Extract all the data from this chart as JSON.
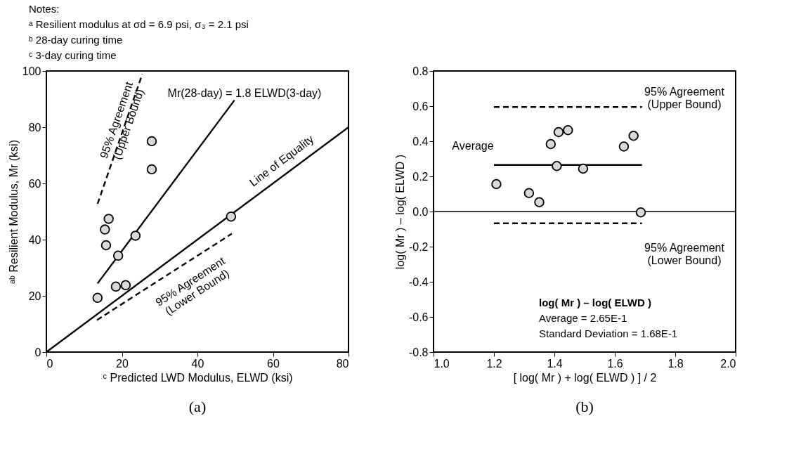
{
  "chart_data": [
    {
      "type": "scatter",
      "xlabel": "ᶜ Predicted LWD Modulus, ELWD (ksi)",
      "ylabel": "ᵃᵇ Resilient Modulus, Mr (ksi)",
      "xlim": [
        0,
        80
      ],
      "ylim": [
        0,
        100
      ],
      "xticks": [
        0,
        20,
        40,
        60,
        80
      ],
      "yticks": [
        0,
        20,
        40,
        60,
        80,
        100
      ],
      "series": [
        {
          "marker": "circle",
          "color": "#d9d9d9",
          "x": [
            13.55,
            18.4,
            21.0,
            19.0,
            15.8,
            15.5,
            16.5,
            23.6,
            27.9,
            27.9,
            48.9
          ],
          "values": [
            19.3,
            23.3,
            23.8,
            34.3,
            38.0,
            43.6,
            47.4,
            41.4,
            65.0,
            75.0,
            48.2
          ]
        },
        {
          "type": "line",
          "color": "#000000",
          "line_style": "solid",
          "x": [
            0,
            80
          ],
          "values": [
            0,
            80
          ]
        },
        {
          "type": "line",
          "color": "#000000",
          "line_style": "solid",
          "x": [
            13.55,
            49.8
          ],
          "values": [
            24.4,
            89.6
          ]
        },
        {
          "type": "line",
          "color": "#000000",
          "line_style": "dashed",
          "x": [
            13.55,
            25.4
          ],
          "values": [
            52.7,
            98.9
          ]
        },
        {
          "type": "line",
          "color": "#000000",
          "line_style": "dashed",
          "x": [
            13.4,
            49.1
          ],
          "values": [
            11.4,
            42.1
          ]
        }
      ],
      "annotations": [
        "Notes:",
        "ᵃ Resilient modulus at σd = 6.9 psi, σ₃ = 2.1 psi",
        "ᵇ 28-day curing time",
        "ᶜ 3-day curing time",
        "(a)",
        "Mr(28-day) = 1.8 ELWD(3-day)",
        "Line of Equality",
        "95% Agreement\n(Upper Bound)",
        "95% Agreement\n(Lower Bound)"
      ]
    },
    {
      "type": "scatter",
      "xlabel": "[ log( Mr ) + log( ELWD ) ] / 2",
      "ylabel": "log( Mr ) – log( ELWD )",
      "xlim": [
        1.0,
        2.0
      ],
      "ylim": [
        -0.8,
        0.8
      ],
      "xticks": [
        {
          "value": 1.0,
          "label": "1.0"
        },
        1.2,
        1.4,
        1.6,
        1.8,
        {
          "value": 2.0,
          "label": "2.0"
        }
      ],
      "yticks": [
        {
          "value": -0.8,
          "label": "-0.8"
        },
        {
          "value": -0.6,
          "label": "-0.6"
        },
        {
          "value": -0.4,
          "label": "-0.4"
        },
        {
          "value": -0.2,
          "label": "-0.2"
        },
        {
          "value": 0,
          "label": "0.0"
        },
        0.2,
        0.4,
        0.6,
        0.8
      ],
      "series": [
        {
          "marker": "circle",
          "color": "#d9d9d9",
          "x": [
            1.208,
            1.316,
            1.35,
            1.388,
            1.414,
            1.445,
            1.408,
            1.495,
            1.63,
            1.662,
            1.686
          ],
          "values": [
            0.156,
            0.105,
            0.053,
            0.384,
            0.452,
            0.463,
            0.259,
            0.244,
            0.37,
            0.431,
            -0.005
          ]
        },
        {
          "type": "line",
          "color": "#000000",
          "line_style": "solid",
          "x": [
            1.2,
            1.69
          ],
          "values": [
            0.265,
            0.265
          ]
        },
        {
          "type": "line",
          "color": "#000000",
          "line_style": "dashed",
          "x": [
            1.2,
            1.69
          ],
          "values": [
            0.595,
            0.595
          ]
        },
        {
          "type": "line",
          "color": "#000000",
          "line_style": "dashed",
          "x": [
            1.2,
            1.69
          ],
          "values": [
            -0.067,
            -0.067
          ]
        }
      ],
      "ref_lines": [
        {
          "axis": "y",
          "value": 0,
          "color": "#000000",
          "line_style": "solid"
        }
      ],
      "annotations": [
        "log( Mr ) – log( ELWD )",
        "Average = 2.65E-1",
        "Standard Deviation = 1.68E-1",
        "(b)",
        "95% Agreement\n(Upper Bound)",
        "Average",
        "95% Agreement\n(Lower Bound)"
      ]
    }
  ]
}
